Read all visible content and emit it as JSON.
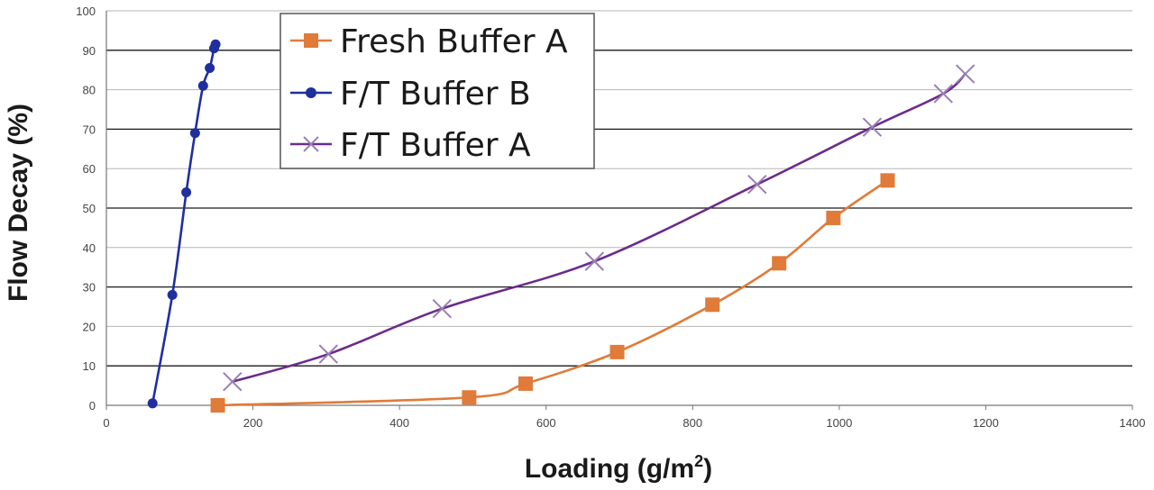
{
  "chart_data": {
    "type": "line",
    "xlabel": "Loading (g/m",
    "xlabel_sup": "2",
    "xlabel_close": ")",
    "ylabel": "Flow Decay (%)",
    "xlim": [
      0,
      1400
    ],
    "ylim": [
      0,
      100
    ],
    "x_ticks": [
      "0",
      "200",
      "400",
      "600",
      "800",
      "1000",
      "1200",
      "1400"
    ],
    "y_ticks": [
      "0",
      "10",
      "20",
      "30",
      "40",
      "50",
      "60",
      "70",
      "80",
      "90",
      "100"
    ],
    "grid": "horizontal",
    "legend_position": "top-center",
    "series": [
      {
        "name": "Fresh Buffer A",
        "color": "#e07b39",
        "marker": "square",
        "points": [
          [
            152,
            0
          ],
          [
            495,
            2
          ],
          [
            572,
            5.5
          ],
          [
            697,
            13.5
          ],
          [
            827,
            25.5
          ],
          [
            918,
            36
          ],
          [
            992,
            47.5
          ],
          [
            1066,
            57
          ]
        ]
      },
      {
        "name": "F/T Buffer B",
        "color": "#1f2f9e",
        "marker": "circle",
        "points": [
          [
            63,
            0.5
          ],
          [
            90,
            28
          ],
          [
            109,
            54
          ],
          [
            121,
            69
          ],
          [
            132,
            81
          ],
          [
            141,
            85.5
          ],
          [
            147,
            90.5
          ],
          [
            149,
            91.5
          ]
        ]
      },
      {
        "name": "F/T Buffer A",
        "color": "#6b2c8c",
        "marker": "x",
        "points": [
          [
            172,
            6
          ],
          [
            303,
            13
          ],
          [
            458,
            24.5
          ],
          [
            666,
            36.5
          ],
          [
            888,
            56
          ],
          [
            1045,
            70.5
          ],
          [
            1142,
            79
          ],
          [
            1172,
            84
          ]
        ]
      }
    ]
  }
}
